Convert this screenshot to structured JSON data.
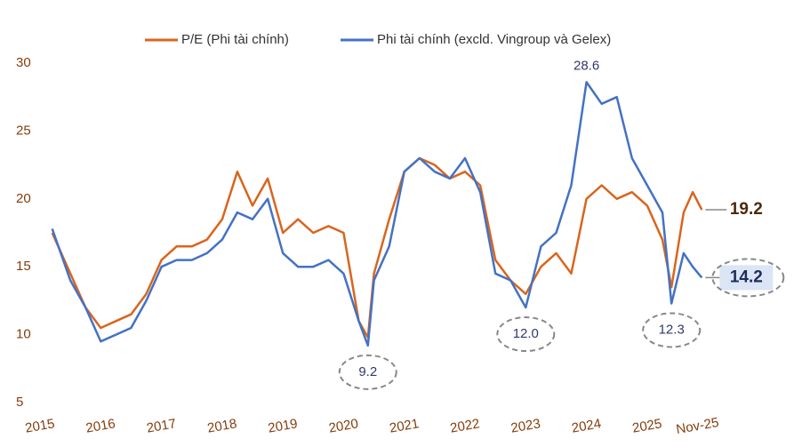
{
  "chart_data": {
    "type": "line",
    "x": [
      2015.2,
      2015.5,
      2015.75,
      2016.0,
      2016.25,
      2016.5,
      2016.75,
      2017.0,
      2017.25,
      2017.5,
      2017.75,
      2018.0,
      2018.25,
      2018.5,
      2018.75,
      2019.0,
      2019.25,
      2019.5,
      2019.75,
      2020.0,
      2020.25,
      2020.4,
      2020.5,
      2020.75,
      2021.0,
      2021.25,
      2021.5,
      2021.75,
      2022.0,
      2022.25,
      2022.5,
      2022.75,
      2023.0,
      2023.25,
      2023.5,
      2023.75,
      2024.0,
      2024.25,
      2024.5,
      2024.75,
      2025.0,
      2025.25,
      2025.4,
      2025.6,
      2025.75,
      2025.9
    ],
    "series": [
      {
        "name": "P/E (Phi tài chính)",
        "color": "#d9651e",
        "values": [
          17.5,
          14.5,
          12,
          10.5,
          11,
          11.5,
          13,
          15.5,
          16.5,
          16.5,
          17,
          18.5,
          22,
          19.5,
          21.5,
          17.5,
          18.5,
          17.5,
          18,
          17.5,
          11,
          9.8,
          14.5,
          18.5,
          22,
          23,
          22.5,
          21.5,
          22,
          21,
          15.5,
          14,
          13,
          15,
          16,
          14.5,
          20,
          21,
          20,
          20.5,
          19.5,
          17,
          13.5,
          19,
          20.5,
          19.2
        ]
      },
      {
        "name": "Phi tài chính (excld. Vingroup và Gelex)",
        "color": "#4472c4",
        "values": [
          17.8,
          14,
          12,
          9.5,
          10,
          10.5,
          12.5,
          15,
          15.5,
          15.5,
          16,
          17,
          19,
          18.5,
          20,
          16,
          15,
          15,
          15.5,
          14.5,
          11,
          9.2,
          14,
          16.5,
          22,
          23,
          22,
          21.5,
          23,
          20.5,
          14.5,
          14,
          12,
          16.5,
          17.5,
          21,
          28.6,
          27,
          27.5,
          23,
          21,
          19,
          12.3,
          16,
          15,
          14.2
        ]
      }
    ],
    "annotations": [
      {
        "x": 2024.0,
        "value": 28.6,
        "label": "28.6",
        "position": "above"
      },
      {
        "x": 2020.4,
        "value": 9.2,
        "label": "9.2",
        "position": "below"
      },
      {
        "x": 2023.0,
        "value": 12,
        "label": "12.0",
        "position": "below"
      },
      {
        "x": 2025.4,
        "value": 12.3,
        "label": "12.3",
        "position": "below"
      },
      {
        "x": 2025.9,
        "value": 19.2,
        "label": "19.2",
        "position": "right"
      },
      {
        "x": 2025.9,
        "value": 14.2,
        "label": "14.2",
        "position": "right-boxed"
      }
    ],
    "xlim": [
      2015,
      2026.1
    ],
    "xticks": [
      2015,
      2016,
      2017,
      2018,
      2019,
      2020,
      2021,
      2022,
      2023,
      2024,
      2025,
      {
        "value": 2025.83,
        "label": "Nov-25"
      }
    ],
    "ylim": [
      5,
      30
    ],
    "yticks": [
      5,
      10,
      15,
      20,
      25,
      30
    ],
    "legend": "top"
  }
}
